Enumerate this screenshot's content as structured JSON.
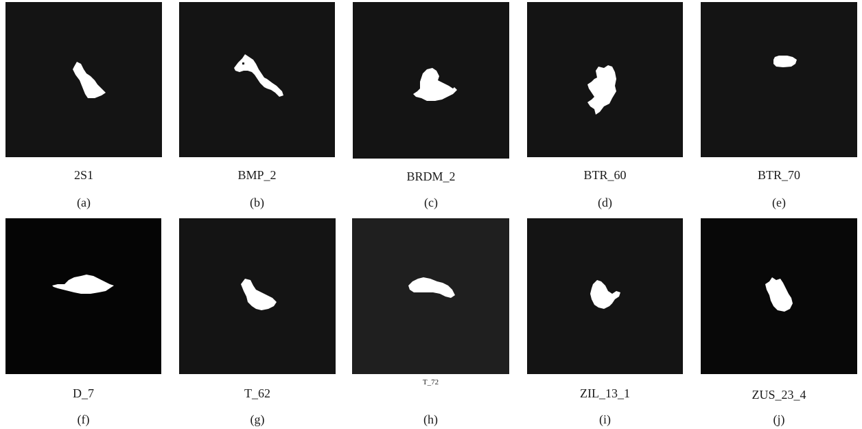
{
  "figure": {
    "panels": [
      {
        "id": "a",
        "label": "2S1",
        "caption": "(a)",
        "background": "#141414"
      },
      {
        "id": "b",
        "label": "BMP_2",
        "caption": "(b)",
        "background": "#141414"
      },
      {
        "id": "c",
        "label": "BRDM_2",
        "caption": "(c)",
        "background": "#141414"
      },
      {
        "id": "d",
        "label": "BTR_60",
        "caption": "(d)",
        "background": "#141414"
      },
      {
        "id": "e",
        "label": "BTR_70",
        "caption": "(e)",
        "background": "#141414"
      },
      {
        "id": "f",
        "label": "D_7",
        "caption": "(f)",
        "background": "#050505"
      },
      {
        "id": "g",
        "label": "T_62",
        "caption": "(g)",
        "background": "#141414"
      },
      {
        "id": "h",
        "label": "T_72",
        "caption": "(h)",
        "background": "#1f1f1f"
      },
      {
        "id": "i",
        "label": "ZIL_13_1",
        "caption": "(i)",
        "background": "#141414"
      },
      {
        "id": "j",
        "label": "ZUS_23_4",
        "caption": "(j)",
        "background": "#080808"
      }
    ]
  }
}
